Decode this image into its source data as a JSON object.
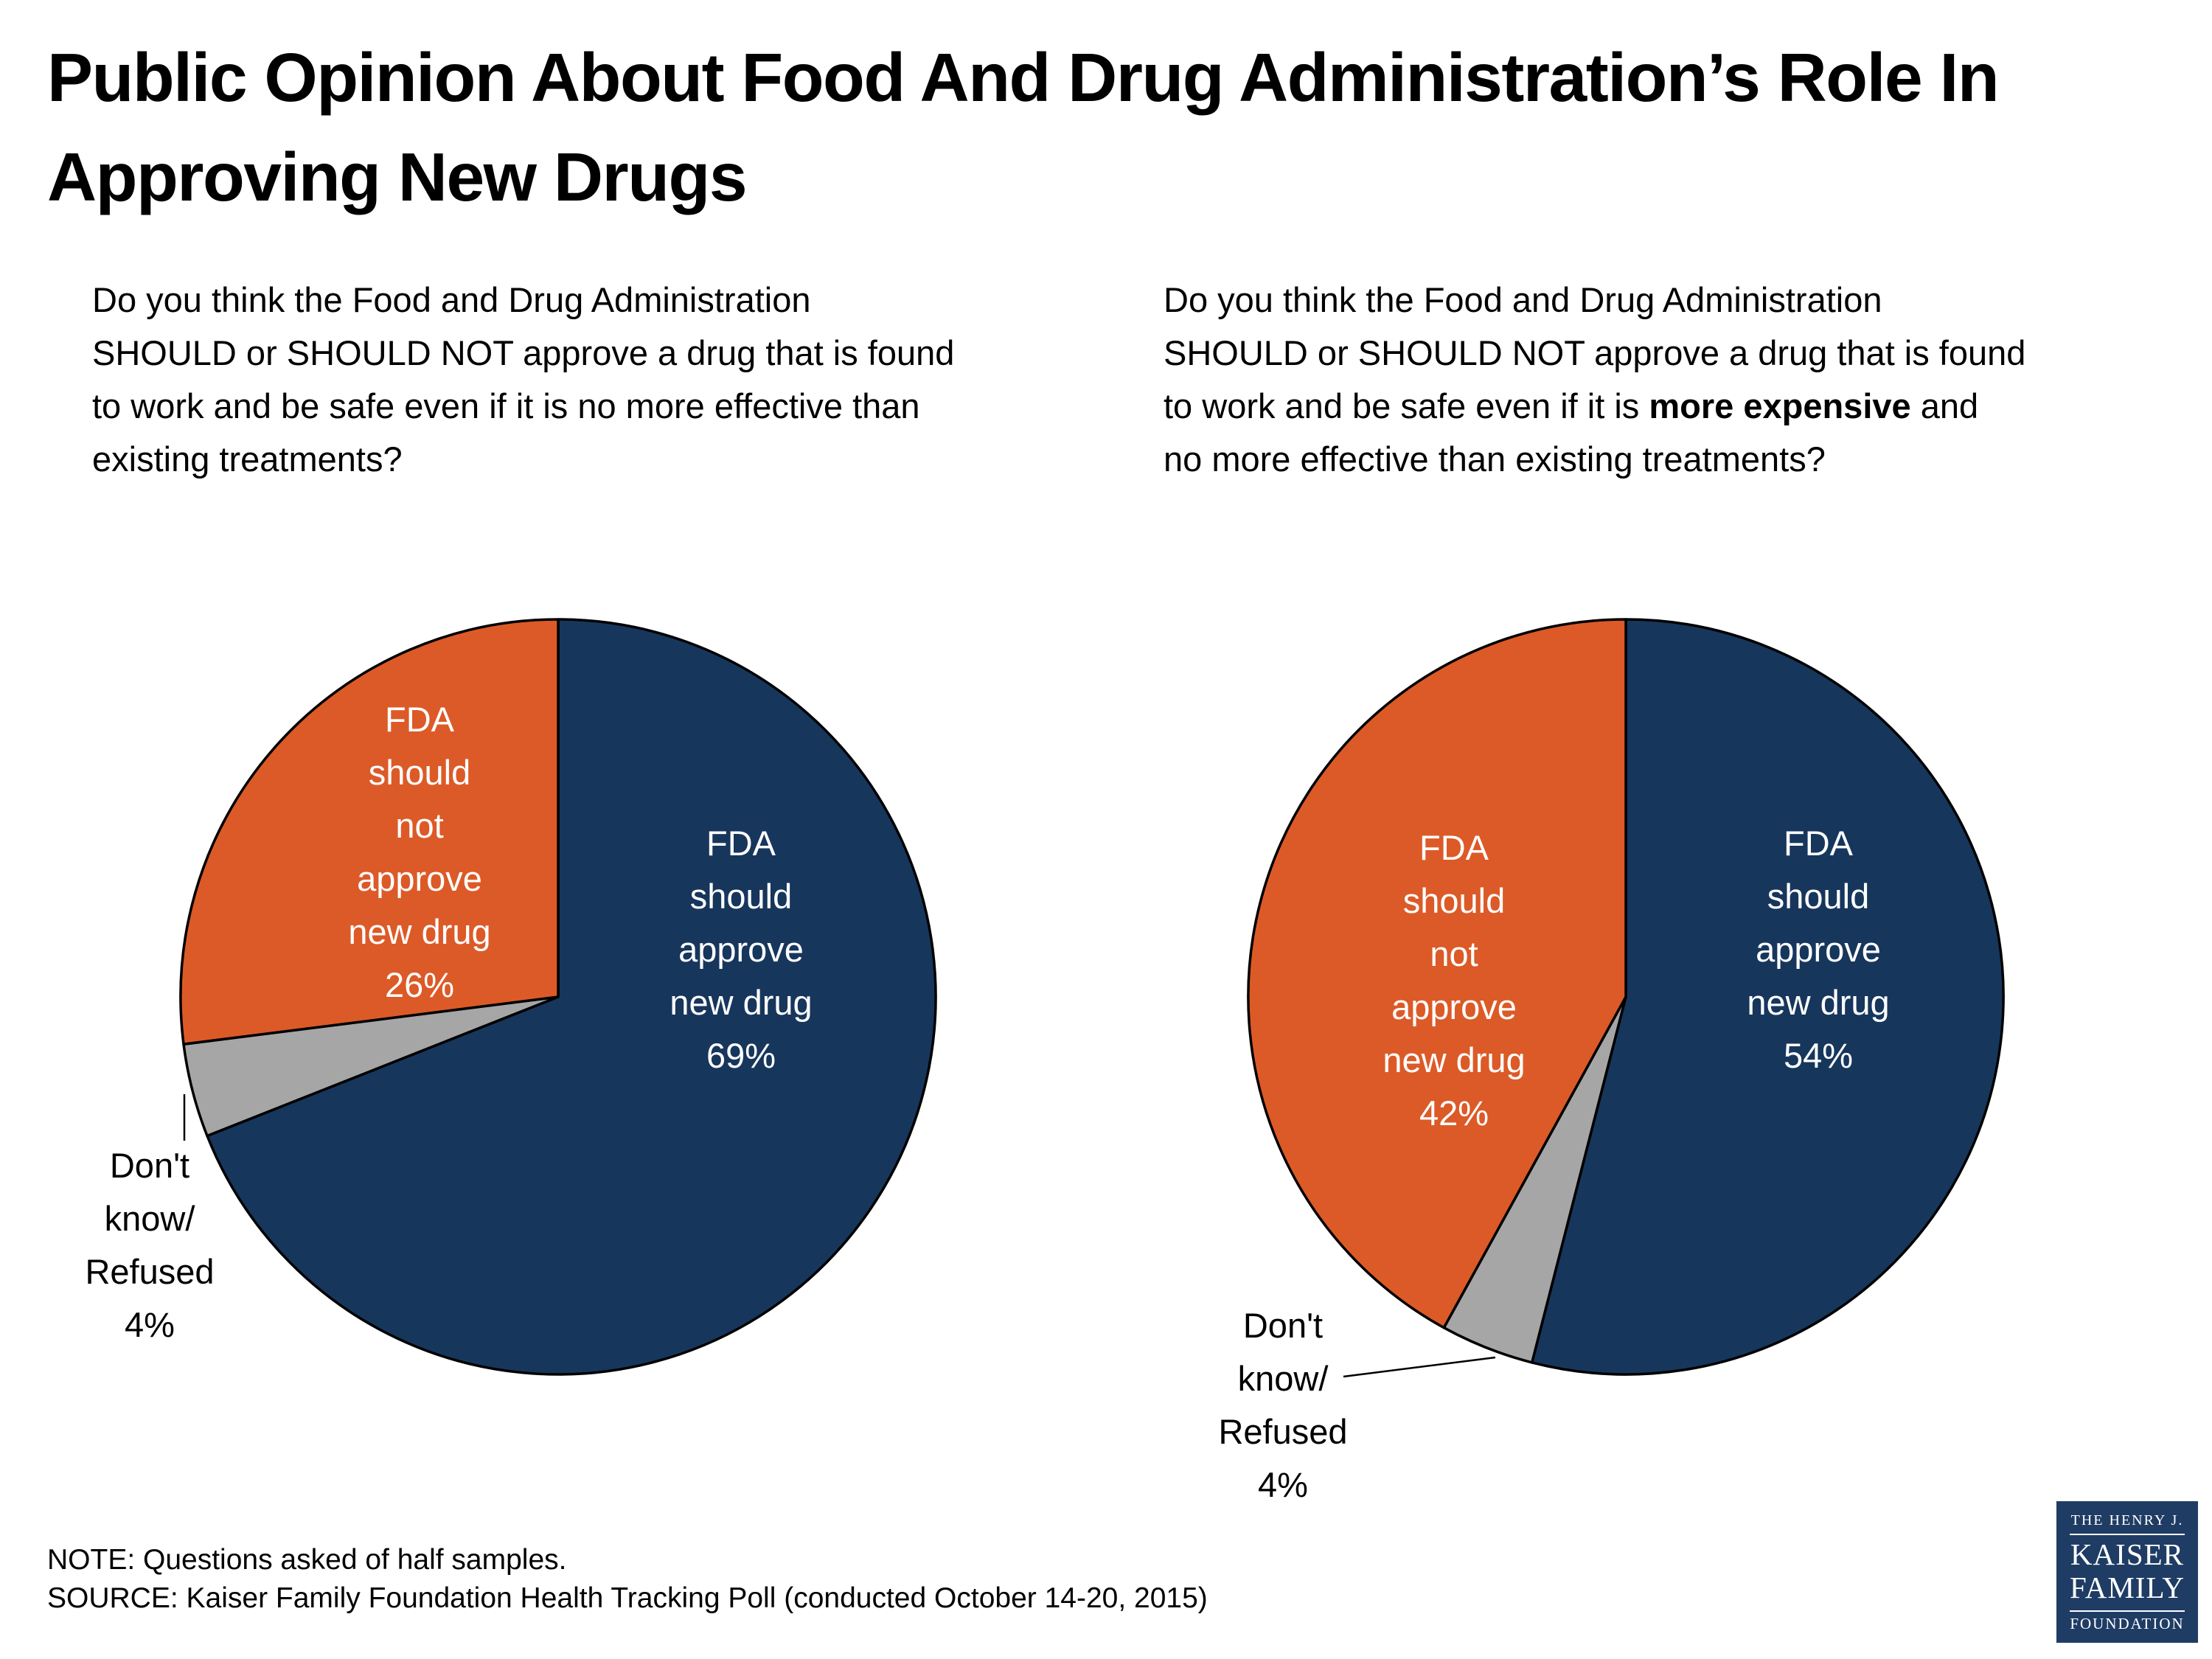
{
  "title": "Public Opinion About Food And Drug Administration’s Role In\nApproving New Drugs",
  "questions": {
    "left": "Do you think the Food and Drug Administration\nSHOULD or SHOULD NOT approve a drug that is found\nto work and be safe even if it is no more effective than\nexisting treatments?",
    "right_part1": "Do you think the Food and Drug Administration\nSHOULD or SHOULD NOT approve a drug that is found\nto work and be safe even if it is ",
    "right_bold": "more expensive",
    "right_part2": " and\nno more effective than existing treatments?"
  },
  "colors": {
    "approve_navy": "#17365c",
    "not_approve_orange": "#dc5a27",
    "dont_know_gray": "#a6a6a6",
    "logo_navy": "#1f3c64"
  },
  "chart_data": [
    {
      "type": "pie",
      "side": "left",
      "question": "Do you think the Food and Drug Administration SHOULD or SHOULD NOT approve a drug that is found to work and be safe even if it is no more effective than existing treatments?",
      "start_angle_deg": 0,
      "direction": "clockwise",
      "slices": [
        {
          "label": "FDA should approve new drug",
          "value_pct": 69,
          "color": "#17365c"
        },
        {
          "label": "Don't know/Refused",
          "value_pct": 4,
          "color": "#a6a6a6"
        },
        {
          "label": "FDA should not approve new drug",
          "value_pct": 26,
          "color": "#dc5a27"
        }
      ]
    },
    {
      "type": "pie",
      "side": "right",
      "question": "Do you think the Food and Drug Administration SHOULD or SHOULD NOT approve a drug that is found to work and be safe even if it is more expensive and no more effective than existing treatments?",
      "start_angle_deg": 0,
      "direction": "clockwise",
      "slices": [
        {
          "label": "FDA should approve new drug",
          "value_pct": 54,
          "color": "#17365c"
        },
        {
          "label": "Don't know/Refused",
          "value_pct": 4,
          "color": "#a6a6a6"
        },
        {
          "label": "FDA should not approve new drug",
          "value_pct": 42,
          "color": "#dc5a27"
        }
      ]
    }
  ],
  "pie_labels": {
    "left_approve": "FDA\nshould\napprove\nnew drug\n69%",
    "left_not_approve": "FDA\nshould\nnot\napprove\nnew drug\n26%",
    "left_dont_know": "Don't\nknow/\nRefused\n4%",
    "right_approve": "FDA\nshould\napprove\nnew drug\n54%",
    "right_not_approve": "FDA\nshould\nnot\napprove\nnew drug\n42%",
    "right_dont_know": "Don't\nknow/\nRefused\n4%"
  },
  "footer": {
    "note": "NOTE: Questions asked of half samples.",
    "source": "SOURCE: Kaiser Family Foundation Health Tracking Poll (conducted October 14-20, 2015)"
  },
  "logo": {
    "top": "THE HENRY J.",
    "name1": "KAISER",
    "name2": "FAMILY",
    "bottom": "FOUNDATION"
  }
}
